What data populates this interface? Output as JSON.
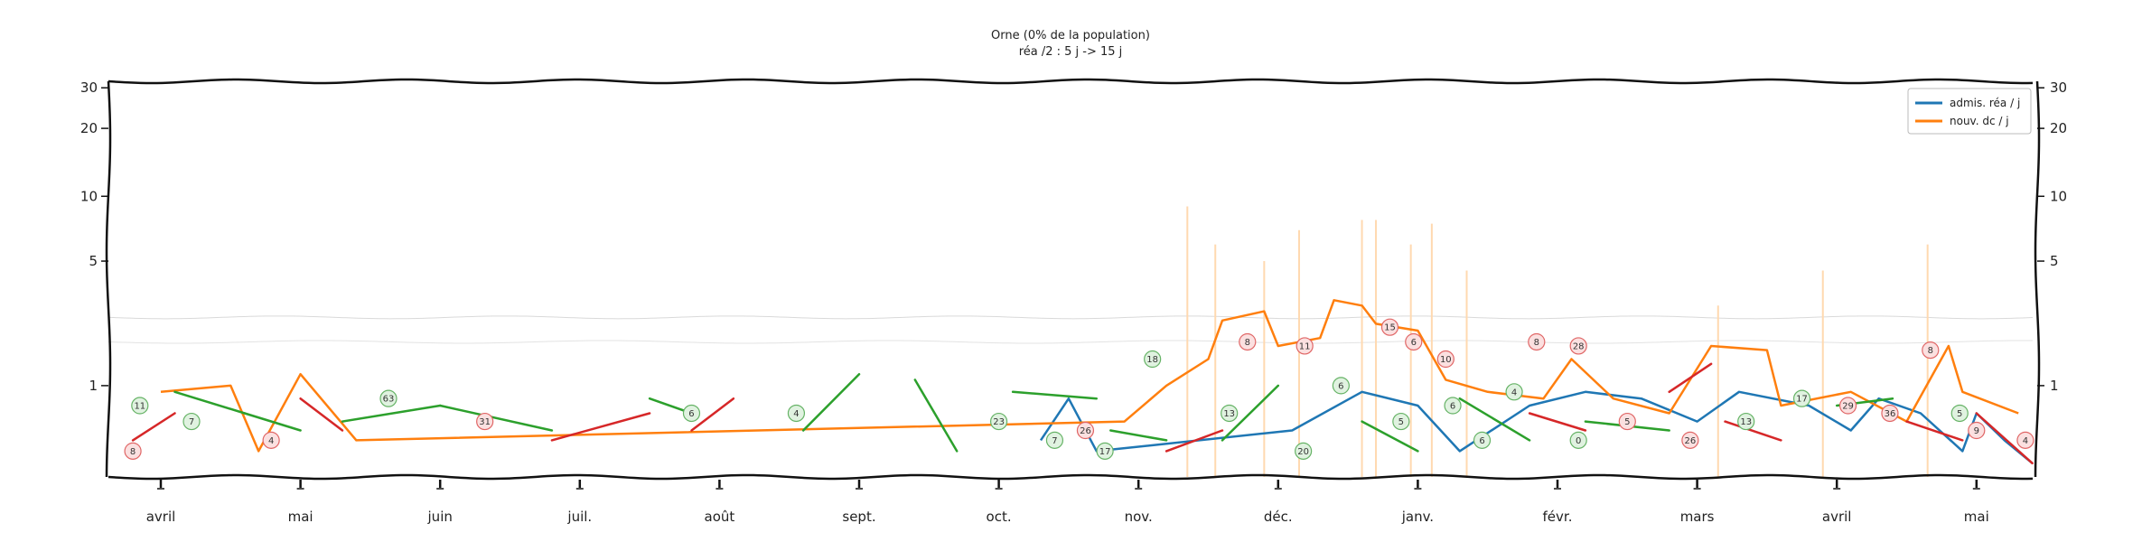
{
  "chart_data": {
    "type": "line",
    "title": "Orne (0% de la population)",
    "subtitle": "réa /2 : 5 j -> 15 j",
    "xlabel": "",
    "ylabel": "",
    "x_ticks": [
      "avril",
      "mai",
      "juin",
      "juil.",
      "août",
      "sept.",
      "oct.",
      "nov.",
      "déc.",
      "janv.",
      "févr.",
      "mars",
      "avril",
      "mai"
    ],
    "y_ticks": [
      1,
      5,
      10,
      20,
      30
    ],
    "y_scale": "symlog",
    "ylim": [
      0,
      32
    ],
    "grid": false,
    "legend_position": "top-right",
    "colors": {
      "rea": "#1f77b4",
      "dc": "#ff7f0e",
      "trend_up": "#d62728",
      "trend_down": "#2ca02c"
    },
    "series": [
      {
        "name": "admis. réa / j",
        "color": "#1f77b4",
        "points": [
          [
            6.3,
            0.3
          ],
          [
            6.5,
            0.8
          ],
          [
            6.7,
            0.2
          ],
          [
            8.1,
            0.4
          ],
          [
            8.6,
            0.9
          ],
          [
            9.0,
            0.7
          ],
          [
            9.3,
            0.2
          ],
          [
            9.8,
            0.7
          ],
          [
            10.2,
            0.9
          ],
          [
            10.6,
            0.8
          ],
          [
            11.0,
            0.5
          ],
          [
            11.3,
            0.9
          ],
          [
            11.8,
            0.7
          ],
          [
            12.1,
            0.4
          ],
          [
            12.3,
            0.8
          ],
          [
            12.6,
            0.6
          ],
          [
            12.9,
            0.2
          ],
          [
            13.0,
            0.6
          ],
          [
            13.2,
            0.3
          ],
          [
            13.4,
            0.1
          ]
        ]
      },
      {
        "name": "nouv. dc / j",
        "color": "#ff7f0e",
        "points": [
          [
            0.0,
            0.9
          ],
          [
            0.5,
            1.0
          ],
          [
            0.7,
            0.2
          ],
          [
            1.0,
            1.2
          ],
          [
            1.4,
            0.3
          ],
          [
            6.9,
            0.5
          ],
          [
            7.2,
            1.0
          ],
          [
            7.5,
            1.5
          ],
          [
            7.6,
            2.5
          ],
          [
            7.9,
            2.8
          ],
          [
            8.0,
            1.8
          ],
          [
            8.3,
            2.0
          ],
          [
            8.4,
            3.2
          ],
          [
            8.6,
            3.0
          ],
          [
            8.7,
            2.4
          ],
          [
            9.0,
            2.2
          ],
          [
            9.2,
            1.1
          ],
          [
            9.5,
            0.9
          ],
          [
            9.9,
            0.8
          ],
          [
            10.1,
            1.5
          ],
          [
            10.4,
            0.8
          ],
          [
            10.8,
            0.6
          ],
          [
            11.1,
            1.8
          ],
          [
            11.5,
            1.7
          ],
          [
            11.6,
            0.7
          ],
          [
            12.1,
            0.9
          ],
          [
            12.5,
            0.5
          ],
          [
            12.8,
            1.8
          ],
          [
            12.9,
            0.9
          ],
          [
            13.3,
            0.6
          ]
        ]
      }
    ],
    "trend_segments": [
      {
        "color": "#d62728",
        "points": [
          [
            -0.2,
            0.3
          ],
          [
            0.1,
            0.6
          ]
        ]
      },
      {
        "color": "#2ca02c",
        "points": [
          [
            0.1,
            0.9
          ],
          [
            0.6,
            0.6
          ]
        ]
      },
      {
        "color": "#2ca02c",
        "points": [
          [
            0.6,
            0.6
          ],
          [
            1.0,
            0.4
          ]
        ]
      },
      {
        "color": "#d62728",
        "points": [
          [
            1.0,
            0.8
          ],
          [
            1.3,
            0.4
          ]
        ]
      },
      {
        "color": "#2ca02c",
        "points": [
          [
            1.3,
            0.5
          ],
          [
            2.0,
            0.7
          ]
        ]
      },
      {
        "color": "#2ca02c",
        "points": [
          [
            2.0,
            0.7
          ],
          [
            2.8,
            0.4
          ]
        ]
      },
      {
        "color": "#d62728",
        "points": [
          [
            2.8,
            0.3
          ],
          [
            3.5,
            0.6
          ]
        ]
      },
      {
        "color": "#2ca02c",
        "points": [
          [
            3.5,
            0.8
          ],
          [
            3.8,
            0.6
          ]
        ]
      },
      {
        "color": "#d62728",
        "points": [
          [
            3.8,
            0.4
          ],
          [
            4.1,
            0.8
          ]
        ]
      },
      {
        "color": "#2ca02c",
        "points": [
          [
            4.6,
            0.4
          ],
          [
            5.0,
            1.2
          ]
        ]
      },
      {
        "color": "#2ca02c",
        "points": [
          [
            5.4,
            1.1
          ],
          [
            5.7,
            0.2
          ]
        ]
      },
      {
        "color": "#2ca02c",
        "points": [
          [
            6.1,
            0.9
          ],
          [
            6.7,
            0.8
          ]
        ]
      },
      {
        "color": "#2ca02c",
        "points": [
          [
            6.8,
            0.4
          ],
          [
            7.2,
            0.3
          ]
        ]
      },
      {
        "color": "#d62728",
        "points": [
          [
            7.2,
            0.2
          ],
          [
            7.6,
            0.4
          ]
        ]
      },
      {
        "color": "#2ca02c",
        "points": [
          [
            7.6,
            0.3
          ],
          [
            8.0,
            1.0
          ]
        ]
      },
      {
        "color": "#2ca02c",
        "points": [
          [
            8.6,
            0.5
          ],
          [
            9.0,
            0.2
          ]
        ]
      },
      {
        "color": "#2ca02c",
        "points": [
          [
            9.3,
            0.8
          ],
          [
            9.8,
            0.3
          ]
        ]
      },
      {
        "color": "#d62728",
        "points": [
          [
            9.8,
            0.6
          ],
          [
            10.2,
            0.4
          ]
        ]
      },
      {
        "color": "#2ca02c",
        "points": [
          [
            10.2,
            0.5
          ],
          [
            10.8,
            0.4
          ]
        ]
      },
      {
        "color": "#d62728",
        "points": [
          [
            10.8,
            0.9
          ],
          [
            11.1,
            1.4
          ]
        ]
      },
      {
        "color": "#d62728",
        "points": [
          [
            11.2,
            0.5
          ],
          [
            11.6,
            0.3
          ]
        ]
      },
      {
        "color": "#2ca02c",
        "points": [
          [
            12.0,
            0.7
          ],
          [
            12.4,
            0.8
          ]
        ]
      },
      {
        "color": "#d62728",
        "points": [
          [
            12.5,
            0.5
          ],
          [
            12.9,
            0.3
          ]
        ]
      },
      {
        "color": "#d62728",
        "points": [
          [
            13.0,
            0.6
          ],
          [
            13.4,
            0.1
          ]
        ]
      }
    ],
    "annotations": [
      {
        "x": -0.2,
        "y": 0.2,
        "label": "8",
        "color": "red"
      },
      {
        "x": -0.15,
        "y": 0.7,
        "label": "11",
        "color": "green"
      },
      {
        "x": 0.22,
        "y": 0.5,
        "label": "7",
        "color": "green"
      },
      {
        "x": 0.79,
        "y": 0.3,
        "label": "4",
        "color": "red"
      },
      {
        "x": 1.63,
        "y": 0.8,
        "label": "63",
        "color": "green"
      },
      {
        "x": 2.32,
        "y": 0.5,
        "label": "31",
        "color": "red"
      },
      {
        "x": 3.8,
        "y": 0.6,
        "label": "6",
        "color": "green"
      },
      {
        "x": 4.55,
        "y": 0.6,
        "label": "4",
        "color": "green"
      },
      {
        "x": 6.0,
        "y": 0.5,
        "label": "23",
        "color": "green"
      },
      {
        "x": 6.4,
        "y": 0.3,
        "label": "7",
        "color": "green"
      },
      {
        "x": 6.62,
        "y": 0.4,
        "label": "26",
        "color": "red"
      },
      {
        "x": 6.76,
        "y": 0.2,
        "label": "17",
        "color": "green"
      },
      {
        "x": 7.1,
        "y": 1.5,
        "label": "18",
        "color": "green"
      },
      {
        "x": 7.65,
        "y": 0.6,
        "label": "13",
        "color": "green"
      },
      {
        "x": 7.78,
        "y": 1.9,
        "label": "8",
        "color": "red"
      },
      {
        "x": 8.18,
        "y": 0.2,
        "label": "20",
        "color": "green"
      },
      {
        "x": 8.19,
        "y": 1.8,
        "label": "11",
        "color": "red"
      },
      {
        "x": 8.45,
        "y": 1.0,
        "label": "6",
        "color": "green"
      },
      {
        "x": 8.8,
        "y": 2.3,
        "label": "15",
        "color": "red"
      },
      {
        "x": 8.88,
        "y": 0.5,
        "label": "5",
        "color": "green"
      },
      {
        "x": 8.97,
        "y": 1.9,
        "label": "6",
        "color": "red"
      },
      {
        "x": 9.2,
        "y": 1.5,
        "label": "10",
        "color": "red"
      },
      {
        "x": 9.25,
        "y": 0.7,
        "label": "6",
        "color": "green"
      },
      {
        "x": 9.46,
        "y": 0.3,
        "label": "6",
        "color": "green"
      },
      {
        "x": 9.69,
        "y": 0.9,
        "label": "4",
        "color": "green"
      },
      {
        "x": 9.85,
        "y": 1.9,
        "label": "8",
        "color": "red"
      },
      {
        "x": 10.15,
        "y": 1.8,
        "label": "28",
        "color": "red"
      },
      {
        "x": 10.15,
        "y": 0.3,
        "label": "0",
        "color": "green"
      },
      {
        "x": 10.5,
        "y": 0.5,
        "label": "5",
        "color": "red"
      },
      {
        "x": 10.95,
        "y": 0.3,
        "label": "26",
        "color": "red"
      },
      {
        "x": 11.35,
        "y": 0.5,
        "label": "13",
        "color": "green"
      },
      {
        "x": 11.75,
        "y": 0.8,
        "label": "17",
        "color": "green"
      },
      {
        "x": 12.08,
        "y": 0.7,
        "label": "29",
        "color": "red"
      },
      {
        "x": 12.38,
        "y": 0.6,
        "label": "36",
        "color": "red"
      },
      {
        "x": 12.67,
        "y": 1.7,
        "label": "8",
        "color": "red"
      },
      {
        "x": 12.88,
        "y": 0.6,
        "label": "5",
        "color": "green"
      },
      {
        "x": 13.0,
        "y": 0.4,
        "label": "9",
        "color": "red"
      },
      {
        "x": 13.35,
        "y": 0.3,
        "label": "4",
        "color": "red"
      }
    ],
    "background_bars_dc": [
      [
        7.35,
        9.0
      ],
      [
        7.55,
        6.0
      ],
      [
        7.9,
        5.0
      ],
      [
        8.15,
        7.0
      ],
      [
        8.6,
        7.8
      ],
      [
        8.7,
        7.8
      ],
      [
        8.95,
        6.0
      ],
      [
        9.1,
        7.5
      ],
      [
        9.35,
        4.5
      ],
      [
        11.15,
        3.0
      ],
      [
        11.9,
        4.5
      ],
      [
        12.65,
        6.0
      ]
    ]
  }
}
